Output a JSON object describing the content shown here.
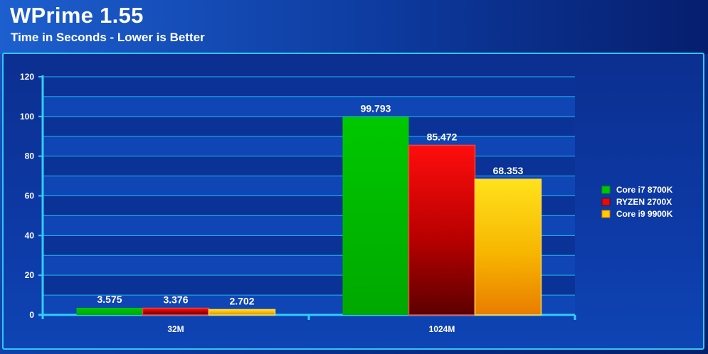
{
  "header": {
    "title": "WPrime 1.55",
    "subtitle": "Time in Seconds - Lower is Better"
  },
  "colors": {
    "grid": "#1fb8ee",
    "axis": "#33ccff",
    "band_dark": "#0b3296",
    "band_light": "#0f45b4"
  },
  "chart_data": {
    "type": "bar",
    "title": "WPrime 1.55",
    "subtitle": "Time in Seconds - Lower is Better",
    "categories": [
      "32M",
      "1024M"
    ],
    "series": [
      {
        "name": "Core i7 8700K",
        "values": [
          3.575,
          99.793
        ],
        "color": "#00bb00"
      },
      {
        "name": "RYZEN 2700X",
        "values": [
          3.376,
          85.472
        ],
        "color": "#dd0000"
      },
      {
        "name": "Core i9 9900K",
        "values": [
          2.702,
          68.353
        ],
        "color": "#ffcc00"
      }
    ],
    "value_labels": [
      [
        "3.575",
        "99.793"
      ],
      [
        "3.376",
        "85.472"
      ],
      [
        "2.702",
        "68.353"
      ]
    ],
    "ylim": [
      0,
      120
    ],
    "yticks": [
      0,
      20,
      40,
      60,
      80,
      100,
      120
    ],
    "xlabel": "",
    "ylabel": "",
    "grid": true,
    "legend_position": "right"
  }
}
